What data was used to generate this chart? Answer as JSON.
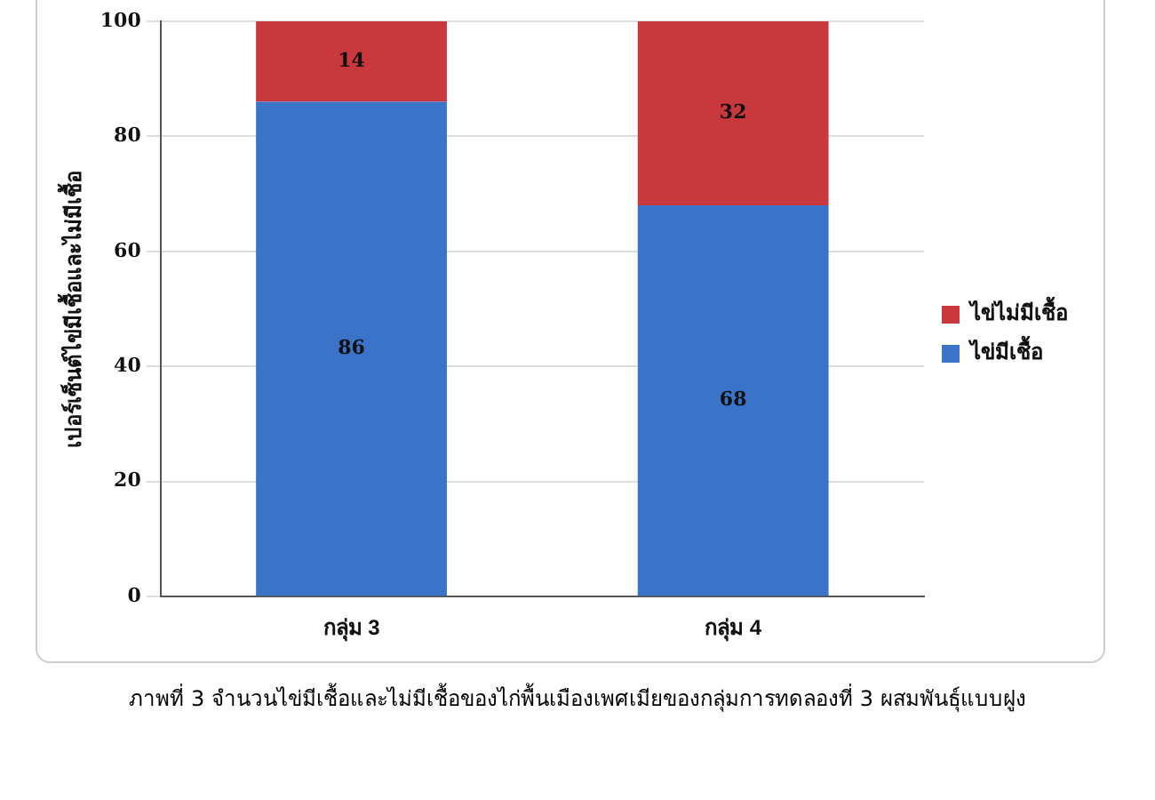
{
  "chart_data": {
    "type": "bar",
    "stacked": true,
    "categories": [
      "กลุ่ม 3",
      "กลุ่ม 4"
    ],
    "series": [
      {
        "name": "ไข่มีเชื้อ",
        "color": "#3a73c8",
        "values": [
          86,
          68
        ]
      },
      {
        "name": "ไข่ไม่มีเชื้อ",
        "color": "#c8383c",
        "values": [
          14,
          32
        ]
      }
    ],
    "ylabel": "เปอร์เซ็นต์ไข่มีเชื้อและไม่มีเชื้อ",
    "ylim": [
      0,
      100
    ],
    "yticks": [
      0,
      20,
      40,
      60,
      80,
      100
    ],
    "grid": "y",
    "legend": "right",
    "data_labels": true,
    "annotations": [
      "ภาพที่ 3 จำนวนไข่มีเชื้อและไม่มีเชื้อของไก่พื้นเมืองเพศเมียของกลุ่มการทดลองที่ 3 ผสมพันธุ์แบบฝูง"
    ]
  }
}
